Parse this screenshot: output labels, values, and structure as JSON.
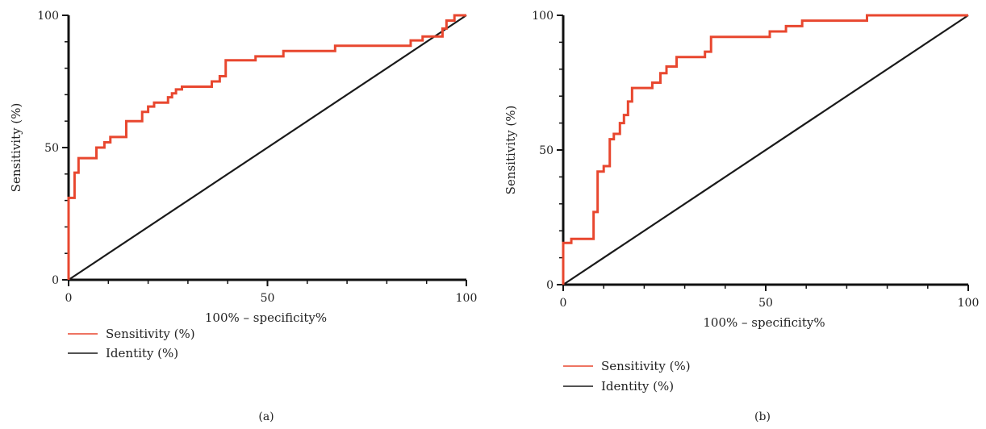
{
  "chart_data": [
    {
      "type": "line",
      "panel_label": "(a)",
      "xlabel": "100% – specificity%",
      "ylabel": "Sensitivity (%)",
      "xlim": [
        0,
        100
      ],
      "ylim": [
        0,
        100
      ],
      "xticks": [
        0,
        50,
        100
      ],
      "yticks": [
        0,
        50,
        100
      ],
      "grid": false,
      "legend_position": "bottom-left",
      "series": [
        {
          "name": "Sensitivity (%)",
          "color": "#e8472f",
          "step": true,
          "x": [
            0,
            0,
            1.5,
            2.5,
            7,
            9,
            10.5,
            12.5,
            14.5,
            18.5,
            20,
            21.5,
            25,
            26,
            27,
            28.5,
            36,
            38,
            39.5,
            47,
            54,
            67,
            86,
            89,
            93,
            94,
            95,
            97,
            100
          ],
          "y": [
            0,
            31,
            40.5,
            46,
            50,
            52,
            54,
            54,
            60,
            63.5,
            65.5,
            67,
            69,
            70.5,
            72,
            73,
            75,
            77,
            83,
            84.5,
            86.5,
            88.5,
            90.5,
            92,
            92,
            95,
            98,
            100,
            100
          ]
        },
        {
          "name": "Identity (%)",
          "color": "#1a1a1a",
          "step": false,
          "x": [
            0,
            100
          ],
          "y": [
            0,
            100
          ]
        }
      ]
    },
    {
      "type": "line",
      "panel_label": "(b)",
      "xlabel": "100% – specificity%",
      "ylabel": "Sensitivity (%)",
      "xlim": [
        0,
        100
      ],
      "ylim": [
        0,
        100
      ],
      "xticks": [
        0,
        50,
        100
      ],
      "yticks": [
        0,
        50,
        100
      ],
      "grid": false,
      "legend_position": "bottom-left",
      "series": [
        {
          "name": "Sensitivity (%)",
          "color": "#e8472f",
          "step": true,
          "x": [
            0,
            0,
            2,
            4,
            7.5,
            8.5,
            10,
            11.5,
            12.5,
            14,
            15,
            16,
            17,
            18,
            22,
            24,
            25.5,
            28,
            35,
            36.5,
            51,
            55,
            59,
            75,
            100
          ],
          "y": [
            0,
            15.5,
            17,
            17,
            27,
            42,
            44,
            54,
            56,
            60,
            63,
            68,
            73,
            73,
            75,
            78.5,
            81,
            84.5,
            86.5,
            92,
            94,
            96,
            98,
            100,
            100
          ]
        },
        {
          "name": "Identity (%)",
          "color": "#1a1a1a",
          "step": false,
          "x": [
            0,
            100
          ],
          "y": [
            0,
            100
          ]
        }
      ]
    }
  ]
}
